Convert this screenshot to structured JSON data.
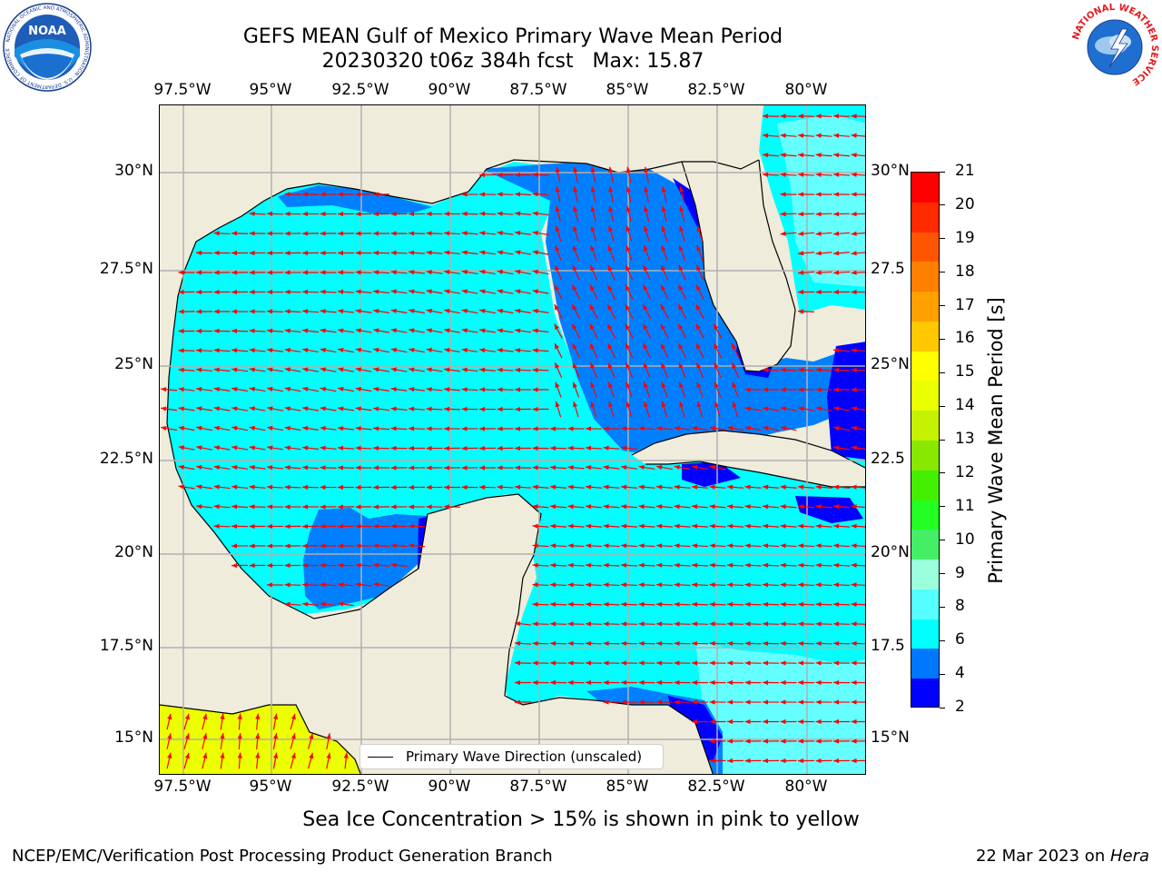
{
  "header": {
    "title_line1": "GEFS MEAN Gulf of Mexico Primary Wave Mean Period",
    "title_line2": "20230320 t06z 384h fcst   Max: 15.87"
  },
  "logos": {
    "noaa_text": "NOAA",
    "noaa_ring": "NATIONAL OCEANIC AND ATMOSPHERIC ADMINISTRATION · U.S. DEPARTMENT OF COMMERCE",
    "nws_ring": "NATIONAL WEATHER SERVICE"
  },
  "axes": {
    "lon_labels": [
      "97.5°W",
      "95°W",
      "92.5°W",
      "90°W",
      "87.5°W",
      "85°W",
      "82.5°W",
      "80°W"
    ],
    "lat_labels_left": [
      "30°N",
      "27.5°N",
      "25°N",
      "22.5°N",
      "20°N",
      "17.5°N",
      "15°N"
    ],
    "lat_labels_right": [
      "30°N",
      "27.5",
      "25°N",
      "22.5",
      "20°N",
      "17.5",
      "15°N"
    ]
  },
  "legend": {
    "label": "Primary Wave Direction (unscaled)"
  },
  "colorbar": {
    "label": "Primary Wave Mean Period [s]",
    "ticks": [
      "21",
      "20",
      "19",
      "18",
      "17",
      "16",
      "15",
      "14",
      "13",
      "12",
      "11",
      "10",
      "9",
      "8",
      "6",
      "4",
      "2"
    ],
    "colors": [
      "#ff0000",
      "#ff2a00",
      "#ff5500",
      "#ff7f00",
      "#ffa000",
      "#ffc800",
      "#ffff00",
      "#eaff00",
      "#c4f200",
      "#88e800",
      "#44ee00",
      "#22ff22",
      "#44ee66",
      "#99ffdd",
      "#55ffff",
      "#00ffff",
      "#0077ff",
      "#0000ff"
    ]
  },
  "colors": {
    "land": "#efecdc",
    "period_8": "#00ffff",
    "period_9": "#66ffff",
    "period_6": "#0080ff",
    "period_4": "#0000ff",
    "period_14": "#ecff00",
    "arrow": "#ff0000",
    "grid": "#b0b0b0"
  },
  "caption": "Sea Ice Concentration > 15% is shown in pink to yellow",
  "footer": {
    "left": "NCEP/EMC/Verification Post Processing Product Generation Branch",
    "right_date": "22 Mar 2023 on ",
    "right_host": "Hera"
  }
}
